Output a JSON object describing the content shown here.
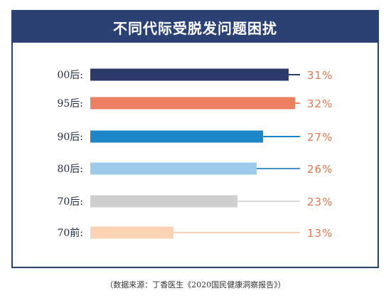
{
  "title": "不同代际受脱发问题困扰",
  "source": "（数据来源：丁香医生《2020国民健康洞察报告》）",
  "colors": {
    "frame": "#2b4174",
    "value_text": "#e8764f"
  },
  "chart_data": {
    "type": "bar",
    "orientation": "horizontal",
    "title": "不同代际受脱发问题困扰",
    "xlabel": "",
    "ylabel": "",
    "xlim": [
      0,
      35
    ],
    "grid": false,
    "legend": "none",
    "categories": [
      "00后:",
      "95后:",
      "90后:",
      "80后:",
      "70后:",
      "70前:"
    ],
    "values": [
      31,
      32,
      27,
      26,
      23,
      13
    ],
    "value_labels": [
      "31%",
      "32%",
      "27%",
      "26%",
      "23%",
      "13%"
    ],
    "bar_colors": [
      "#2b3a6b",
      "#ec8061",
      "#1c86c8",
      "#9ccbec",
      "#cfcfcf",
      "#fbd3b4"
    ],
    "line_colors": [
      "#2b3a6b",
      "#ec8061",
      "#1c86c8",
      "#4a90c8",
      "#d9d9d9",
      "#fbd3b4"
    ]
  }
}
